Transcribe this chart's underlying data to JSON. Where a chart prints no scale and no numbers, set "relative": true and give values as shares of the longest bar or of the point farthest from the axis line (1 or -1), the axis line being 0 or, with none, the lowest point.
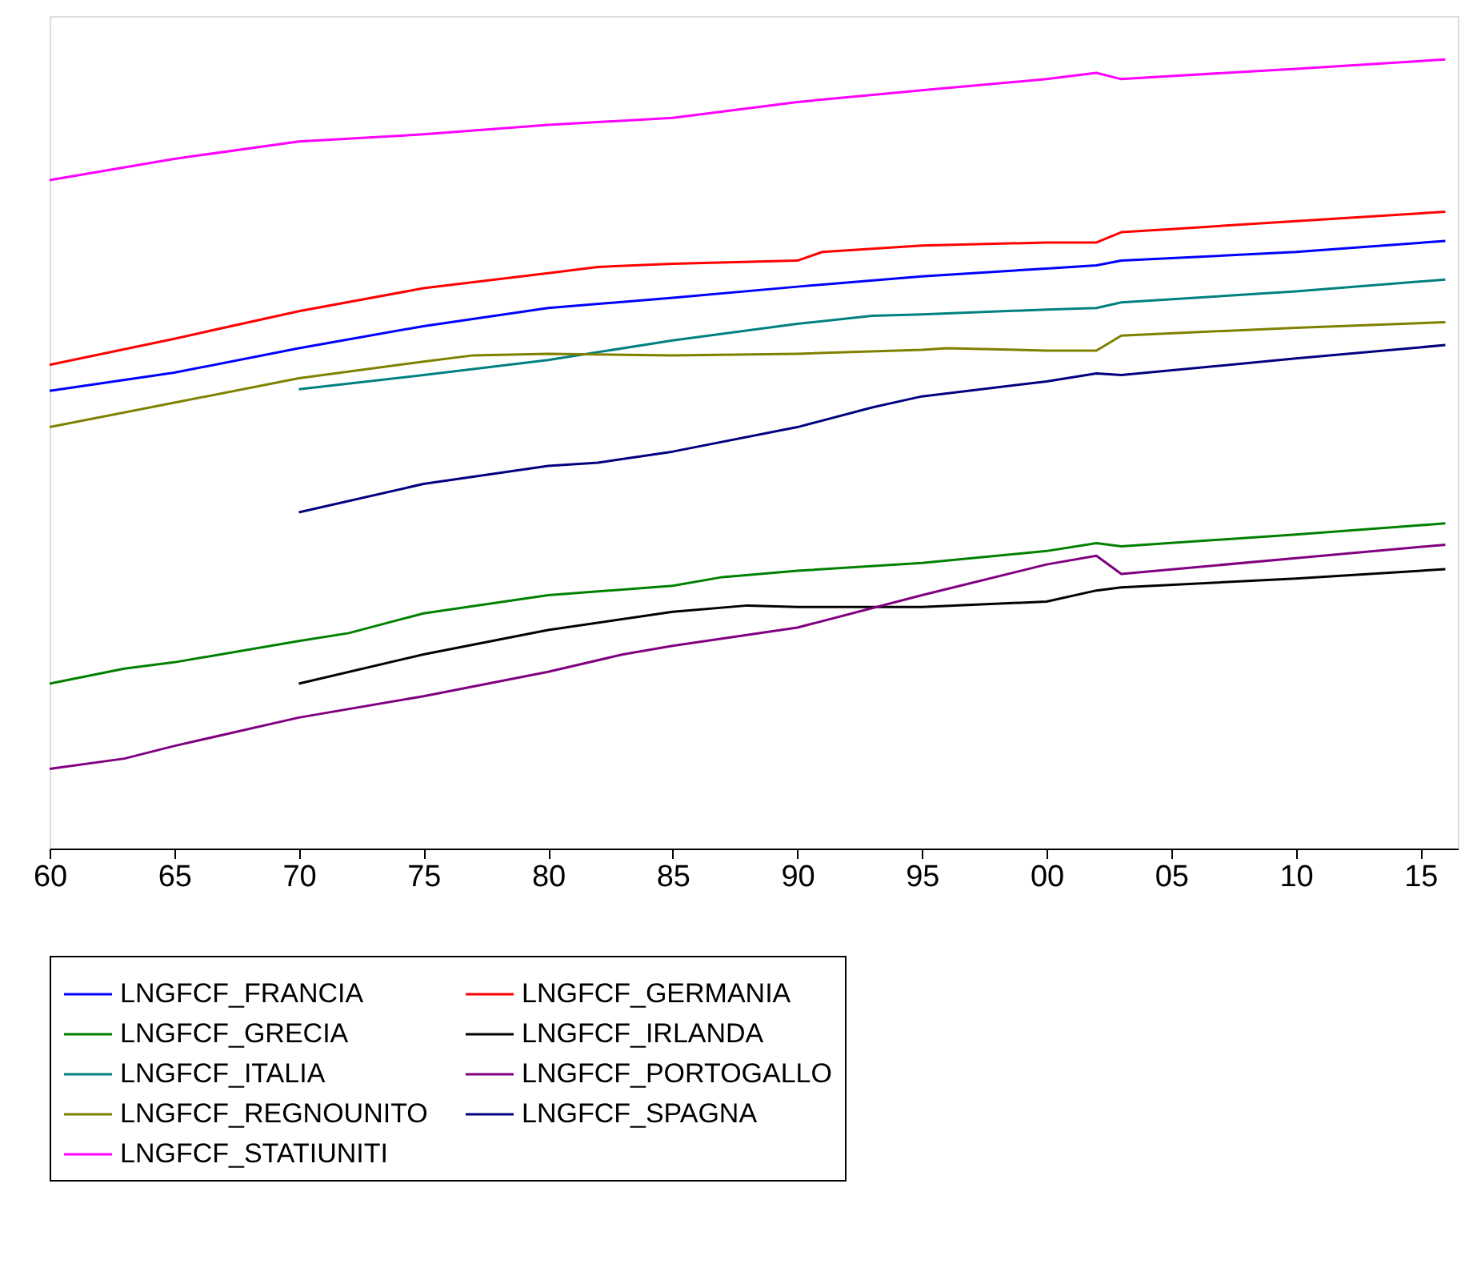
{
  "chart_data": {
    "type": "line",
    "relative": true,
    "grid": false,
    "legend": "bottom",
    "line_style": "solid",
    "marker": "none",
    "xlim": [
      1960,
      2016.5
    ],
    "xticks": [
      {
        "value": 1960,
        "label": "60"
      },
      {
        "value": 1965,
        "label": "65"
      },
      {
        "value": 1970,
        "label": "70"
      },
      {
        "value": 1975,
        "label": "75"
      },
      {
        "value": 1980,
        "label": "80"
      },
      {
        "value": 1985,
        "label": "85"
      },
      {
        "value": 1990,
        "label": "90"
      },
      {
        "value": 1995,
        "label": "95"
      },
      {
        "value": 2000,
        "label": "00"
      },
      {
        "value": 2005,
        "label": "05"
      },
      {
        "value": 2010,
        "label": "10"
      },
      {
        "value": 2015,
        "label": "15"
      }
    ],
    "series": [
      {
        "name": "LNGFCF_FRANCIA",
        "color": "#0000ff",
        "x": [
          1960,
          1965,
          1970,
          1975,
          1980,
          1985,
          1990,
          1995,
          2000,
          2002,
          2003,
          2010,
          2016
        ],
        "values": [
          0.58,
          0.603,
          0.634,
          0.662,
          0.685,
          0.698,
          0.712,
          0.725,
          0.735,
          0.739,
          0.745,
          0.756,
          0.77
        ]
      },
      {
        "name": "LNGFCF_GERMANIA",
        "color": "#ff0000",
        "x": [
          1960,
          1965,
          1970,
          1975,
          1980,
          1982,
          1985,
          1990,
          1991,
          1995,
          2000,
          2002,
          2003,
          2005,
          2010,
          2016
        ],
        "values": [
          0.613,
          0.646,
          0.681,
          0.71,
          0.729,
          0.737,
          0.741,
          0.745,
          0.756,
          0.764,
          0.768,
          0.768,
          0.781,
          0.785,
          0.795,
          0.807
        ]
      },
      {
        "name": "LNGFCF_GRECIA",
        "color": "#008000",
        "x": [
          1960,
          1963,
          1965,
          1970,
          1972,
          1975,
          1980,
          1985,
          1987,
          1990,
          1995,
          2000,
          2002,
          2003,
          2010,
          2016
        ],
        "values": [
          0.209,
          0.228,
          0.236,
          0.263,
          0.273,
          0.298,
          0.321,
          0.333,
          0.344,
          0.352,
          0.362,
          0.377,
          0.387,
          0.383,
          0.398,
          0.412
        ]
      },
      {
        "name": "LNGFCF_IRLANDA",
        "color": "#000000",
        "x": [
          1970,
          1975,
          1980,
          1985,
          1988,
          1990,
          1995,
          2000,
          2002,
          2003,
          2010,
          2016
        ],
        "values": [
          0.209,
          0.246,
          0.277,
          0.3,
          0.308,
          0.306,
          0.306,
          0.313,
          0.327,
          0.331,
          0.342,
          0.354
        ]
      },
      {
        "name": "LNGFCF_ITALIA",
        "color": "#008080",
        "x": [
          1970,
          1975,
          1980,
          1985,
          1990,
          1993,
          1995,
          2000,
          2002,
          2003,
          2010,
          2016
        ],
        "values": [
          0.582,
          0.6,
          0.619,
          0.644,
          0.665,
          0.675,
          0.677,
          0.683,
          0.685,
          0.692,
          0.706,
          0.721
        ]
      },
      {
        "name": "LNGFCF_PORTOGALLO",
        "color": "#800080",
        "x": [
          1960,
          1963,
          1965,
          1970,
          1975,
          1980,
          1983,
          1985,
          1990,
          1995,
          2000,
          2002,
          2003,
          2010,
          2016
        ],
        "values": [
          0.101,
          0.114,
          0.13,
          0.166,
          0.193,
          0.224,
          0.246,
          0.257,
          0.28,
          0.321,
          0.36,
          0.371,
          0.348,
          0.368,
          0.385
        ]
      },
      {
        "name": "LNGFCF_REGNOUNITO",
        "color": "#808000",
        "x": [
          1960,
          1965,
          1970,
          1975,
          1977,
          1980,
          1985,
          1990,
          1995,
          1996,
          2000,
          2002,
          2003,
          2010,
          2016
        ],
        "values": [
          0.534,
          0.565,
          0.596,
          0.617,
          0.625,
          0.627,
          0.625,
          0.627,
          0.632,
          0.634,
          0.631,
          0.631,
          0.65,
          0.66,
          0.667
        ]
      },
      {
        "name": "LNGFCF_SPAGNA",
        "color": "#000080",
        "x": [
          1970,
          1975,
          1980,
          1982,
          1985,
          1990,
          1993,
          1995,
          2000,
          2002,
          2003,
          2010,
          2016
        ],
        "values": [
          0.426,
          0.462,
          0.485,
          0.489,
          0.503,
          0.534,
          0.559,
          0.573,
          0.592,
          0.602,
          0.6,
          0.621,
          0.638
        ]
      },
      {
        "name": "LNGFCF_STATIUNITI",
        "color": "#ff00ff",
        "x": [
          1960,
          1965,
          1970,
          1975,
          1980,
          1985,
          1990,
          1995,
          2000,
          2002,
          2003,
          2005,
          2010,
          2016
        ],
        "values": [
          0.847,
          0.874,
          0.896,
          0.905,
          0.917,
          0.926,
          0.946,
          0.961,
          0.975,
          0.983,
          0.975,
          0.979,
          0.988,
          1.0
        ]
      }
    ]
  }
}
